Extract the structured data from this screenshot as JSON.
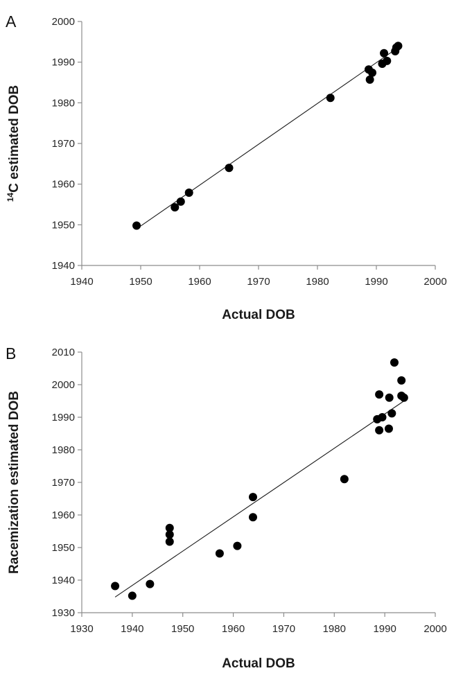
{
  "chart_data": [
    {
      "type": "scatter",
      "panel_label": "A",
      "xlabel": "Actual DOB",
      "ylabel_sup": "14",
      "ylabel": "C estimated DOB",
      "xlim": [
        1940,
        2000
      ],
      "ylim": [
        1940,
        2000
      ],
      "xticks": [
        "1940",
        "1950",
        "1960",
        "1970",
        "1980",
        "1990",
        "2000"
      ],
      "yticks": [
        "1940",
        "1950",
        "1960",
        "1970",
        "1980",
        "1990",
        "2000"
      ],
      "grid": false,
      "points": [
        {
          "x": 1949.3,
          "y": 1949.8
        },
        {
          "x": 1955.8,
          "y": 1954.3
        },
        {
          "x": 1956.8,
          "y": 1955.7
        },
        {
          "x": 1958.2,
          "y": 1957.9
        },
        {
          "x": 1965.0,
          "y": 1964.0
        },
        {
          "x": 1982.2,
          "y": 1981.2
        },
        {
          "x": 1988.7,
          "y": 1988.2
        },
        {
          "x": 1988.9,
          "y": 1985.7
        },
        {
          "x": 1989.3,
          "y": 1987.4
        },
        {
          "x": 1991.0,
          "y": 1989.6
        },
        {
          "x": 1991.3,
          "y": 1992.2
        },
        {
          "x": 1991.8,
          "y": 1990.3
        },
        {
          "x": 1993.2,
          "y": 1992.7
        },
        {
          "x": 1993.4,
          "y": 1993.6
        },
        {
          "x": 1993.7,
          "y": 1994.0
        }
      ],
      "trendline": {
        "x": [
          1949.3,
          1993.7
        ],
        "y": [
          1949.0,
          1993.6
        ]
      }
    },
    {
      "type": "scatter",
      "panel_label": "B",
      "xlabel": "Actual DOB",
      "ylabel": "Racemization estimated DOB",
      "xlim": [
        1930,
        2000
      ],
      "ylim": [
        1930,
        2010
      ],
      "xticks": [
        "1930",
        "1940",
        "1950",
        "1960",
        "1970",
        "1980",
        "1990",
        "2000"
      ],
      "yticks": [
        "1930",
        "1940",
        "1950",
        "1960",
        "1970",
        "1980",
        "1990",
        "2000",
        "2010"
      ],
      "grid": false,
      "points": [
        {
          "x": 1936.6,
          "y": 1938.2
        },
        {
          "x": 1940.0,
          "y": 1935.2
        },
        {
          "x": 1943.5,
          "y": 1938.8
        },
        {
          "x": 1947.4,
          "y": 1951.8
        },
        {
          "x": 1947.4,
          "y": 1954.0
        },
        {
          "x": 1947.4,
          "y": 1956.0
        },
        {
          "x": 1957.3,
          "y": 1948.2
        },
        {
          "x": 1960.8,
          "y": 1950.5
        },
        {
          "x": 1963.9,
          "y": 1959.3
        },
        {
          "x": 1963.9,
          "y": 1965.5
        },
        {
          "x": 1982.0,
          "y": 1971.0
        },
        {
          "x": 1988.5,
          "y": 1989.4
        },
        {
          "x": 1988.9,
          "y": 1997.0
        },
        {
          "x": 1988.9,
          "y": 1986.0
        },
        {
          "x": 1989.5,
          "y": 1990.0
        },
        {
          "x": 1990.8,
          "y": 1986.5
        },
        {
          "x": 1990.9,
          "y": 1996.0
        },
        {
          "x": 1991.4,
          "y": 1991.2
        },
        {
          "x": 1991.9,
          "y": 2006.8
        },
        {
          "x": 1993.3,
          "y": 2001.3
        },
        {
          "x": 1993.3,
          "y": 1996.6
        },
        {
          "x": 1993.8,
          "y": 1996.0
        }
      ],
      "trendline": {
        "x": [
          1936.6,
          1993.8
        ],
        "y": [
          1934.8,
          1995.0
        ]
      }
    }
  ]
}
